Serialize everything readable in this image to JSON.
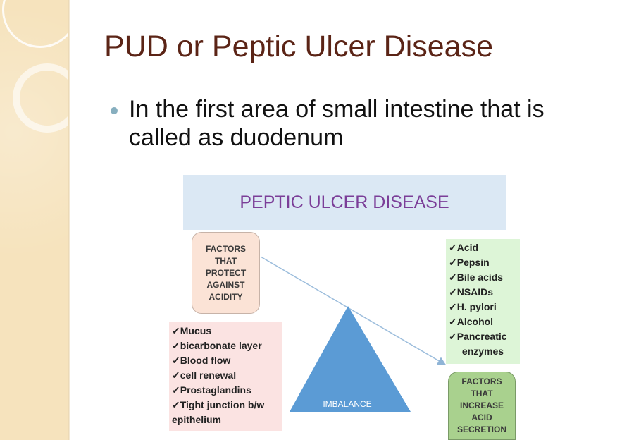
{
  "slide": {
    "title": "PUD or Peptic Ulcer Disease",
    "bullet": "In the first area of small intestine that is called as duodenum"
  },
  "diagram": {
    "title": "PEPTIC ULCER DISEASE",
    "protect_box": "FACTORS\nTHAT\nPROTECT\nAGAINST\nACIDITY",
    "protect_items": [
      "✓Mucus",
      "✓bicarbonate layer",
      "✓Blood flow",
      "✓cell renewal",
      "✓Prostaglandins",
      "✓Tight junction b/w",
      "epithelium"
    ],
    "increase_items": [
      "✓Acid",
      "✓Pepsin",
      "✓Bile acids",
      "✓NSAIDs",
      "✓H. pylori",
      "✓Alcohol",
      "✓Pancreatic",
      "enzymes"
    ],
    "increase_box": "FACTORS\nTHAT\nINCREASE\nACID\nSECRETION",
    "triangle_label": "IMBALANCE",
    "colors": {
      "title_bg": "#dbe8f4",
      "title_text": "#7b3e98",
      "protect_bg": "#fbe3d6",
      "left_list_bg": "#fbe3e2",
      "right_list_bg": "#ddf5d7",
      "increase_bg": "#a9d18e",
      "triangle": "#5b9bd5"
    }
  }
}
